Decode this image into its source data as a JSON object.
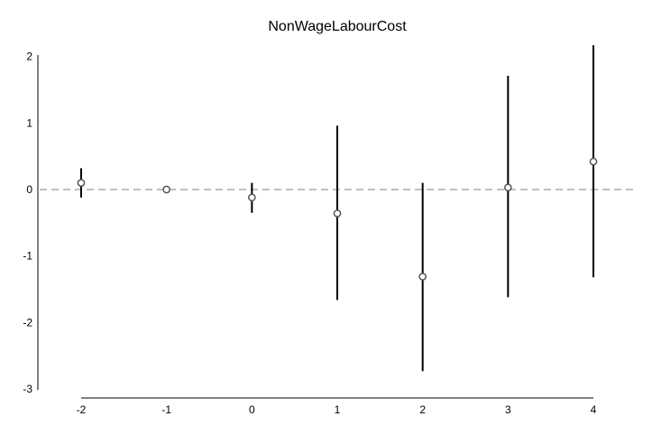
{
  "chart_data": {
    "type": "scatter",
    "title": "NonWageLabourCost",
    "xlabel": "",
    "ylabel": "",
    "x": [
      -2,
      -1,
      0,
      1,
      2,
      3,
      4
    ],
    "x_tick_labels": [
      "-2",
      "-1",
      "0",
      "1",
      "2",
      "3",
      "4"
    ],
    "y_ticks": [
      2,
      1,
      0,
      -1,
      -2,
      -3
    ],
    "y_tick_labels": [
      "2",
      "1",
      "0",
      "-1",
      "-2",
      "-3"
    ],
    "xlim": [
      -2.5,
      4.5
    ],
    "ylim": [
      -3,
      2.2
    ],
    "series": [
      {
        "estimate": [
          0.1,
          0.0,
          -0.12,
          -0.36,
          -1.31,
          0.03,
          0.42
        ],
        "ci_lower": [
          -0.12,
          0.0,
          -0.35,
          -1.66,
          -2.73,
          -1.62,
          -1.32
        ],
        "ci_upper": [
          0.32,
          0.0,
          0.1,
          0.96,
          0.1,
          1.71,
          2.17
        ]
      }
    ],
    "reference_line": {
      "y": 0,
      "style": "dashed"
    },
    "grid": false
  }
}
